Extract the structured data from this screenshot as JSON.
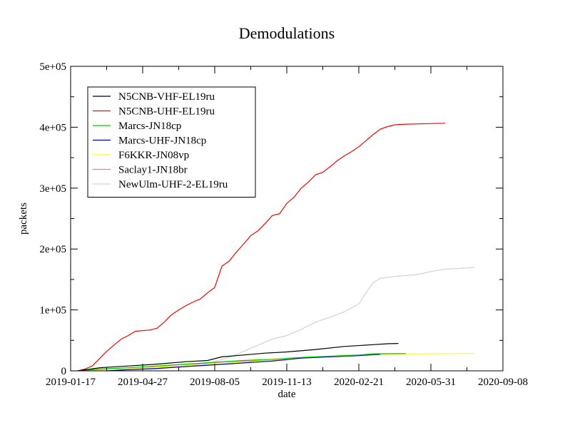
{
  "chart_data": {
    "type": "line",
    "title": "Demodulations",
    "xlabel": "date",
    "ylabel": "packets",
    "x_ticks": [
      "2019-01-17",
      "2019-04-27",
      "2019-08-05",
      "2019-11-13",
      "2020-02-21",
      "2020-05-31",
      "2020-09-08"
    ],
    "xlim": [
      "2019-01-17",
      "2020-09-08"
    ],
    "y_ticks": [
      "0",
      "1e+05",
      "2e+05",
      "3e+05",
      "4e+05",
      "5e+05"
    ],
    "ylim": [
      0,
      500000
    ],
    "grid": false,
    "legend_position": "top-left",
    "series": [
      {
        "name": "N5CNB-VHF-EL19ru",
        "color": "#000000",
        "points": [
          [
            "2019-01-27",
            0
          ],
          [
            "2019-02-26",
            5000
          ],
          [
            "2019-04-07",
            8000
          ],
          [
            "2019-05-17",
            11000
          ],
          [
            "2019-06-26",
            15000
          ],
          [
            "2019-07-26",
            17000
          ],
          [
            "2019-08-15",
            23000
          ],
          [
            "2019-09-14",
            26000
          ],
          [
            "2019-10-14",
            29000
          ],
          [
            "2019-11-13",
            31000
          ],
          [
            "2019-12-23",
            35000
          ],
          [
            "2020-02-01",
            40000
          ],
          [
            "2020-03-12",
            43000
          ],
          [
            "2020-04-01",
            44500
          ],
          [
            "2020-04-16",
            45000
          ]
        ]
      },
      {
        "name": "N5CNB-UHF-EL19ru",
        "color": "#ff0000",
        "points": [
          [
            "2019-01-27",
            0
          ],
          [
            "2019-02-06",
            3000
          ],
          [
            "2019-02-16",
            8000
          ],
          [
            "2019-02-26",
            20000
          ],
          [
            "2019-03-08",
            32000
          ],
          [
            "2019-03-18",
            42000
          ],
          [
            "2019-03-28",
            52000
          ],
          [
            "2019-04-07",
            58000
          ],
          [
            "2019-04-17",
            65000
          ],
          [
            "2019-05-07",
            67000
          ],
          [
            "2019-05-17",
            70000
          ],
          [
            "2019-05-27",
            80000
          ],
          [
            "2019-06-06",
            92000
          ],
          [
            "2019-06-16",
            100000
          ],
          [
            "2019-06-26",
            107000
          ],
          [
            "2019-07-06",
            113000
          ],
          [
            "2019-07-16",
            118000
          ],
          [
            "2019-07-26",
            128000
          ],
          [
            "2019-08-05",
            137000
          ],
          [
            "2019-08-15",
            172000
          ],
          [
            "2019-08-25",
            180000
          ],
          [
            "2019-09-04",
            195000
          ],
          [
            "2019-09-14",
            208000
          ],
          [
            "2019-09-24",
            222000
          ],
          [
            "2019-10-04",
            230000
          ],
          [
            "2019-10-14",
            242000
          ],
          [
            "2019-10-24",
            255000
          ],
          [
            "2019-11-03",
            258000
          ],
          [
            "2019-11-13",
            275000
          ],
          [
            "2019-11-23",
            285000
          ],
          [
            "2019-12-03",
            300000
          ],
          [
            "2019-12-13",
            310000
          ],
          [
            "2019-12-23",
            322000
          ],
          [
            "2020-01-02",
            326000
          ],
          [
            "2020-01-12",
            335000
          ],
          [
            "2020-01-22",
            345000
          ],
          [
            "2020-02-01",
            353000
          ],
          [
            "2020-02-11",
            360000
          ],
          [
            "2020-02-21",
            368000
          ],
          [
            "2020-03-02",
            378000
          ],
          [
            "2020-03-12",
            388000
          ],
          [
            "2020-03-22",
            397000
          ],
          [
            "2020-04-01",
            401000
          ],
          [
            "2020-04-11",
            404000
          ],
          [
            "2020-04-26",
            405000
          ],
          [
            "2020-05-31",
            406000
          ],
          [
            "2020-06-20",
            406500
          ]
        ]
      },
      {
        "name": "Marcs-JN18cp",
        "color": "#00cc00",
        "points": [
          [
            "2019-01-27",
            0
          ],
          [
            "2019-02-26",
            3000
          ],
          [
            "2019-04-07",
            5000
          ],
          [
            "2019-05-17",
            8000
          ],
          [
            "2019-06-26",
            11000
          ],
          [
            "2019-08-05",
            14000
          ],
          [
            "2019-09-14",
            17000
          ],
          [
            "2019-10-24",
            19000
          ],
          [
            "2019-12-03",
            22000
          ],
          [
            "2020-01-12",
            24000
          ],
          [
            "2020-02-21",
            26000
          ],
          [
            "2020-03-12",
            28000
          ],
          [
            "2020-04-26",
            28500
          ]
        ]
      },
      {
        "name": "Marcs-UHF-JN18cp",
        "color": "#0000aa",
        "points": [
          [
            "2019-03-08",
            0
          ],
          [
            "2019-04-07",
            2000
          ],
          [
            "2019-05-17",
            4000
          ],
          [
            "2019-06-26",
            7000
          ],
          [
            "2019-08-05",
            10000
          ],
          [
            "2019-09-14",
            13000
          ],
          [
            "2019-10-24",
            16000
          ],
          [
            "2019-12-03",
            21000
          ],
          [
            "2020-01-12",
            23000
          ],
          [
            "2020-02-21",
            25000
          ],
          [
            "2020-03-22",
            27000
          ]
        ]
      },
      {
        "name": "F6KKR-JN08vp",
        "color": "#ffff00",
        "points": [
          [
            "2019-01-27",
            0
          ],
          [
            "2019-03-08",
            3000
          ],
          [
            "2019-05-17",
            6000
          ],
          [
            "2019-07-26",
            10000
          ],
          [
            "2019-09-14",
            14000
          ],
          [
            "2019-11-13",
            20000
          ],
          [
            "2020-01-12",
            24000
          ],
          [
            "2020-03-12",
            27000
          ],
          [
            "2020-04-26",
            28000
          ],
          [
            "2020-07-30",
            28500
          ]
        ]
      },
      {
        "name": "Saclay1-JN18br",
        "color": "#f08080",
        "points": [
          [
            "2019-01-27",
            0
          ],
          [
            "2019-02-26",
            2000
          ],
          [
            "2019-04-17",
            5000
          ],
          [
            "2019-06-06",
            9000
          ],
          [
            "2019-07-16",
            12000
          ],
          [
            "2019-08-25",
            15000
          ],
          [
            "2019-10-04",
            17000
          ],
          [
            "2019-11-13",
            18000
          ]
        ]
      },
      {
        "name": "NewUlm-UHF-2-EL19ru",
        "color": "#d3d3d3",
        "points": [
          [
            "2019-01-17",
            0
          ],
          [
            "2019-03-08",
            0
          ],
          [
            "2019-05-17",
            3000
          ],
          [
            "2019-07-26",
            12000
          ],
          [
            "2019-08-25",
            22000
          ],
          [
            "2019-09-14",
            32000
          ],
          [
            "2019-10-04",
            42000
          ],
          [
            "2019-10-24",
            52000
          ],
          [
            "2019-11-13",
            58000
          ],
          [
            "2019-12-03",
            68000
          ],
          [
            "2019-12-23",
            80000
          ],
          [
            "2020-01-12",
            88000
          ],
          [
            "2020-02-01",
            97000
          ],
          [
            "2020-02-21",
            110000
          ],
          [
            "2020-03-02",
            128000
          ],
          [
            "2020-03-12",
            145000
          ],
          [
            "2020-03-22",
            152000
          ],
          [
            "2020-04-11",
            155000
          ],
          [
            "2020-05-11",
            158000
          ],
          [
            "2020-05-31",
            163000
          ],
          [
            "2020-06-20",
            167000
          ],
          [
            "2020-07-10",
            168000
          ],
          [
            "2020-07-30",
            170000
          ]
        ]
      }
    ]
  }
}
